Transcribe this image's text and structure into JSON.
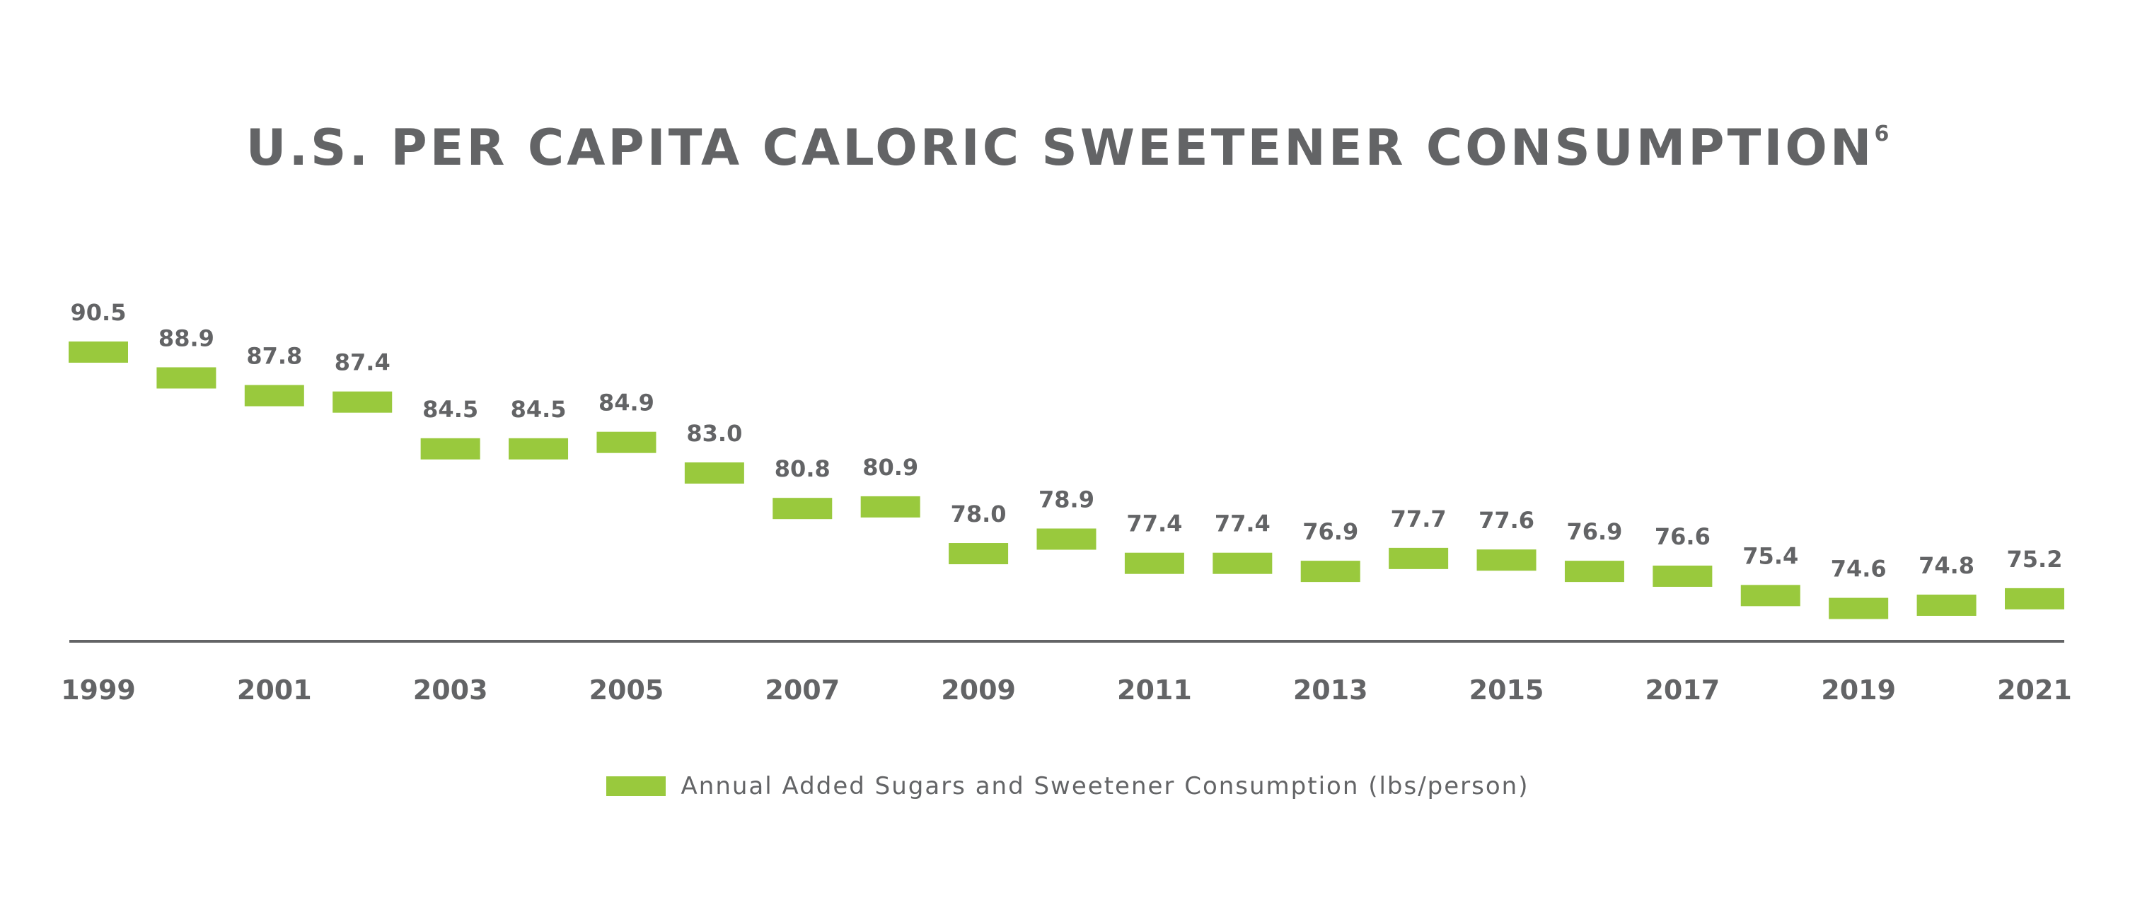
{
  "chart_data": {
    "type": "scatter",
    "title": "U.S. PER CAPITA CALORIC SWEETENER CONSUMPTION",
    "title_superscript": "6",
    "xlabel": "",
    "ylabel": "",
    "x": [
      1999,
      2000,
      2001,
      2002,
      2003,
      2004,
      2005,
      2006,
      2007,
      2008,
      2009,
      2010,
      2011,
      2012,
      2013,
      2014,
      2015,
      2016,
      2017,
      2018,
      2019,
      2020,
      2021
    ],
    "series": [
      {
        "name": "Annual Added Sugars and Sweetener Consumption (lbs/person)",
        "color": "#99c93d",
        "values": [
          90.5,
          88.9,
          87.8,
          87.4,
          84.5,
          84.5,
          84.9,
          83.0,
          80.8,
          80.9,
          78.0,
          78.9,
          77.4,
          77.4,
          76.9,
          77.7,
          77.6,
          76.9,
          76.6,
          75.4,
          74.6,
          74.8,
          75.2
        ],
        "labels": [
          "90.5",
          "88.9",
          "87.8",
          "87.4",
          "84.5",
          "84.5",
          "84.9",
          "83.0",
          "80.8",
          "80.9",
          "78.0",
          "78.9",
          "77.4",
          "77.4",
          "76.9",
          "77.7",
          "77.6",
          "76.9",
          "76.6",
          "75.4",
          "74.6",
          "74.8",
          "75.2"
        ]
      }
    ],
    "x_tick_labels": [
      "1999",
      "2001",
      "2003",
      "2005",
      "2007",
      "2009",
      "2011",
      "2013",
      "2015",
      "2017",
      "2019",
      "2021"
    ],
    "x_tick_values": [
      1999,
      2001,
      2003,
      2005,
      2007,
      2009,
      2011,
      2013,
      2015,
      2017,
      2019,
      2021
    ],
    "y_axis_visible": false,
    "grid": false,
    "legend": {
      "position": "bottom-center",
      "label": "Annual Added Sugars and Sweetener Consumption (lbs/person)"
    },
    "colors": {
      "marker": "#99c93d",
      "text": "#636466",
      "axis": "#636466"
    }
  }
}
